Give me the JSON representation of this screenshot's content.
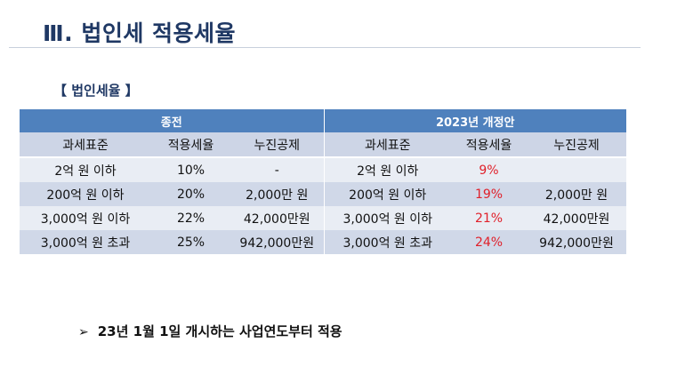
{
  "page_title": "Ⅲ. 법인세 적용세율",
  "section_label": "【 법인세율 】",
  "table": {
    "group_headers": [
      "종전",
      "2023년 개정안"
    ],
    "column_headers": [
      "과세표준",
      "적용세율",
      "누진공제",
      "과세표준",
      "적용세율",
      "누진공제"
    ],
    "rows": [
      [
        "2억 원 이하",
        "10%",
        "-",
        "2억 원 이하",
        "9%",
        ""
      ],
      [
        "200억 원 이하",
        "20%",
        "2,000만 원",
        "200억 원 이하",
        "19%",
        "2,000만 원"
      ],
      [
        "3,000억 원 이하",
        "22%",
        "42,000만원",
        "3,000억 원 이하",
        "21%",
        "42,000만원"
      ],
      [
        "3,000억 원 초과",
        "25%",
        "942,000만원",
        "3,000억 원 초과",
        "24%",
        "942,000만원"
      ]
    ]
  },
  "note": {
    "bullet": "➢",
    "text": "23년 1월 1일 개시하는 사업연도부터 적용"
  },
  "colors": {
    "title": "#1f3864",
    "group_header_bg": "#4f81bd",
    "column_header_bg": "#cdd5e6",
    "row_light_bg": "#e9edf4",
    "row_dark_bg": "#d0d8e8",
    "new_rate": "#e0202a"
  }
}
